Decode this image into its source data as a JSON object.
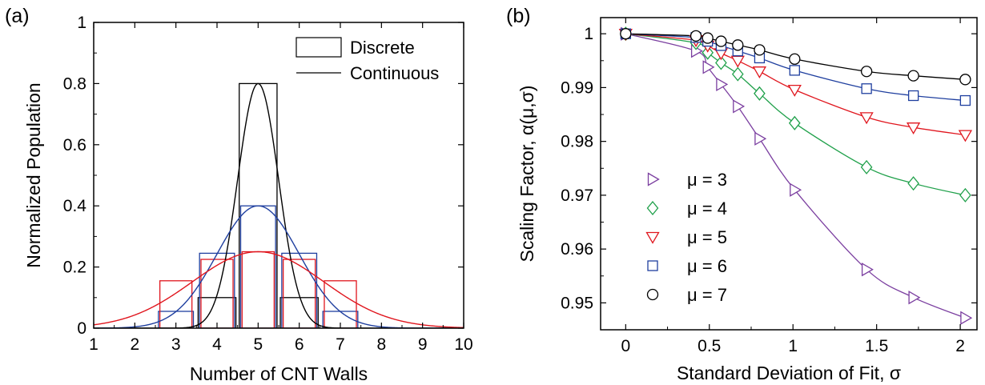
{
  "chart_data": [
    {
      "panel_label": "(a)",
      "type": "bar",
      "xlabel": "Number of CNT Walls",
      "ylabel": "Normalized Population",
      "xlim": [
        1,
        10
      ],
      "ylim": [
        0,
        1
      ],
      "xticks": [
        "1",
        "2",
        "3",
        "4",
        "5",
        "6",
        "7",
        "8",
        "9",
        "10"
      ],
      "yticks": [
        "0",
        "0.2",
        "0.4",
        "0.6",
        "0.8",
        "1"
      ],
      "legend": {
        "position": "top-right",
        "entries": [
          "Discrete",
          "Continuous"
        ]
      },
      "colors": {
        "narrow": "#000000",
        "medium": "#1f3f9f",
        "wide": "#e0161e"
      },
      "discrete": [
        {
          "color": "narrow",
          "x": [
            4,
            5,
            6
          ],
          "values": [
            0.1,
            0.8,
            0.1
          ]
        },
        {
          "color": "medium",
          "x": [
            3,
            4,
            5,
            6,
            7
          ],
          "values": [
            0.055,
            0.245,
            0.4,
            0.245,
            0.055
          ]
        },
        {
          "color": "wide",
          "x": [
            3,
            4,
            5,
            6,
            7
          ],
          "values": [
            0.155,
            0.225,
            0.25,
            0.225,
            0.155
          ]
        }
      ],
      "continuous": [
        {
          "color": "narrow",
          "mean": 5,
          "sigma": 0.5,
          "peak": 0.8
        },
        {
          "color": "medium",
          "mean": 5,
          "sigma": 1.0,
          "peak": 0.4
        },
        {
          "color": "wide",
          "mean": 5,
          "sigma": 1.6,
          "peak": 0.25
        }
      ]
    },
    {
      "panel_label": "(b)",
      "type": "scatter",
      "xlabel": "Standard Deviation of Fit, σ",
      "ylabel": "Scaling Factor, α(μ,σ)",
      "xlim": [
        -0.15,
        2.1
      ],
      "ylim": [
        0.945,
        1.003
      ],
      "xticks": [
        "0",
        "0.5",
        "1",
        "1.5",
        "2"
      ],
      "yticks": [
        "0.95",
        "0.96",
        "0.97",
        "0.98",
        "0.99",
        "1"
      ],
      "legend": {
        "position": "bottom-left"
      },
      "series": [
        {
          "name": "μ = 3",
          "color": "#7b3fa0",
          "marker": "triangle-right",
          "x": [
            0,
            0.42,
            0.49,
            0.57,
            0.67,
            0.8,
            1.01,
            1.44,
            1.72,
            2.03
          ],
          "y": [
            1,
            0.9968,
            0.9938,
            0.9906,
            0.9865,
            0.9805,
            0.971,
            0.9562,
            0.951,
            0.9472
          ]
        },
        {
          "name": "μ = 4",
          "color": "#1fa04a",
          "marker": "diamond",
          "x": [
            0,
            0.42,
            0.49,
            0.57,
            0.67,
            0.8,
            1.01,
            1.44,
            1.72,
            2.03
          ],
          "y": [
            1,
            0.9983,
            0.9965,
            0.9946,
            0.9925,
            0.9889,
            0.9834,
            0.9752,
            0.9722,
            0.97
          ]
        },
        {
          "name": "μ = 5",
          "color": "#e0161e",
          "marker": "triangle-down",
          "x": [
            0,
            0.42,
            0.49,
            0.57,
            0.67,
            0.8,
            1.01,
            1.44,
            1.72,
            2.03
          ],
          "y": [
            1,
            0.9988,
            0.9978,
            0.9964,
            0.995,
            0.993,
            0.9896,
            0.9845,
            0.9826,
            0.9812
          ]
        },
        {
          "name": "μ = 6",
          "color": "#1f3f9f",
          "marker": "square",
          "x": [
            0,
            0.42,
            0.49,
            0.57,
            0.67,
            0.8,
            1.01,
            1.44,
            1.72,
            2.03
          ],
          "y": [
            1,
            0.9993,
            0.9986,
            0.9978,
            0.9968,
            0.9955,
            0.9932,
            0.9898,
            0.9885,
            0.9876
          ]
        },
        {
          "name": "μ = 7",
          "color": "#000000",
          "marker": "circle",
          "x": [
            0,
            0.42,
            0.49,
            0.57,
            0.67,
            0.8,
            1.01,
            1.44,
            1.72,
            2.03
          ],
          "y": [
            1,
            0.9996,
            0.9992,
            0.9986,
            0.9979,
            0.997,
            0.9953,
            0.993,
            0.9922,
            0.9915
          ]
        }
      ]
    }
  ]
}
